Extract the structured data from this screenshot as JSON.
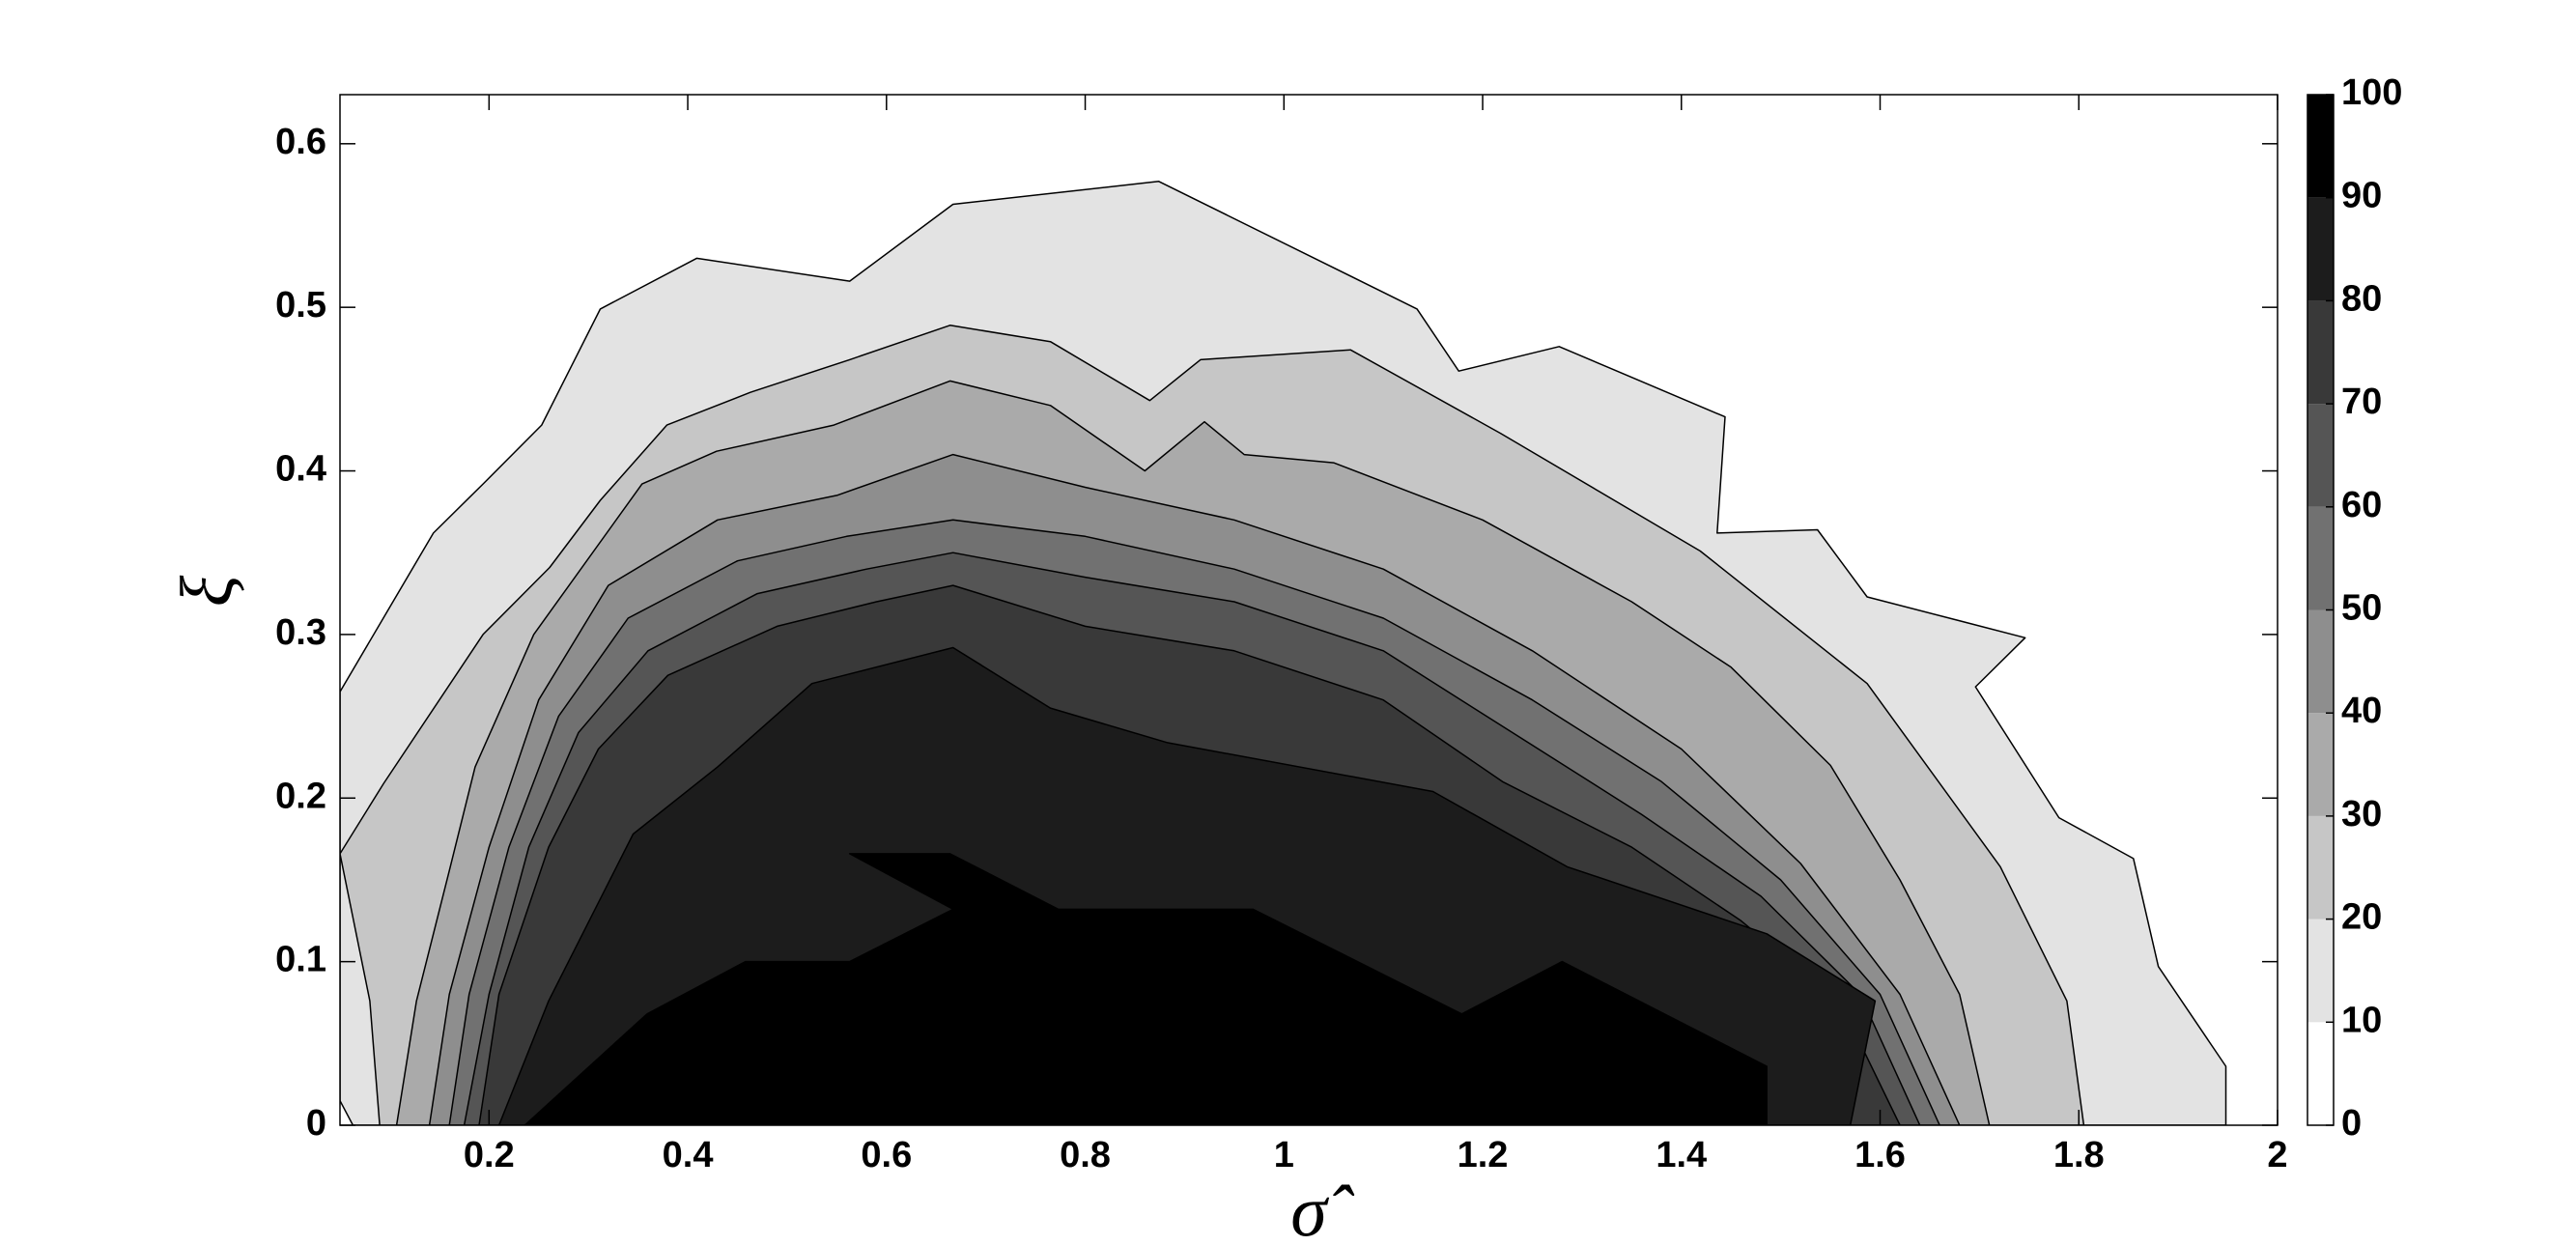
{
  "chart_data": {
    "type": "contour",
    "xlabel": "σ̂",
    "ylabel": "ξ",
    "xlim": [
      0.05,
      2
    ],
    "ylim": [
      0,
      0.63
    ],
    "xticks": [
      0.2,
      0.4,
      0.6,
      0.8,
      1,
      1.2,
      1.4,
      1.6,
      1.8,
      2
    ],
    "yticks": [
      0,
      0.1,
      0.2,
      0.3,
      0.4,
      0.5,
      0.6
    ],
    "clim": [
      0,
      100
    ],
    "cticks": [
      0,
      10,
      20,
      30,
      40,
      50,
      60,
      70,
      80,
      90,
      100
    ],
    "colors": [
      "#ffffff",
      "#e3e3e3",
      "#c6c6c6",
      "#aaaaaa",
      "#8e8e8e",
      "#717171",
      "#555555",
      "#393939",
      "#1c1c1c",
      "#000000"
    ],
    "contours": [
      {
        "x": [
          0.05,
          0.144,
          0.194,
          0.253,
          0.312,
          0.409,
          0.563,
          0.667,
          0.874,
          1.134,
          1.176,
          1.277,
          1.444,
          1.436,
          1.537,
          1.587,
          1.746,
          1.696,
          1.78,
          1.855,
          1.88,
          1.948,
          1.948,
          0.063,
          0.05
        ],
        "y": [
          0.265,
          0.362,
          0.392,
          0.428,
          0.499,
          0.53,
          0.516,
          0.563,
          0.577,
          0.499,
          0.461,
          0.476,
          0.433,
          0.362,
          0.364,
          0.323,
          0.298,
          0.268,
          0.188,
          0.163,
          0.097,
          0.036,
          0,
          0,
          0.015
        ]
      },
      {
        "x": [
          0.05,
          0.094,
          0.194,
          0.261,
          0.312,
          0.379,
          0.463,
          0.563,
          0.664,
          0.765,
          0.865,
          0.916,
          1.067,
          1.218,
          1.419,
          1.587,
          1.721,
          1.788,
          1.805,
          0.09,
          0.08
        ],
        "y": [
          0.166,
          0.209,
          0.3,
          0.341,
          0.382,
          0.428,
          0.448,
          0.468,
          0.489,
          0.479,
          0.443,
          0.468,
          0.474,
          0.423,
          0.351,
          0.27,
          0.158,
          0.076,
          0,
          0,
          0.076
        ]
      },
      {
        "x": [
          0.107,
          0.127,
          0.161,
          0.186,
          0.245,
          0.354,
          0.429,
          0.547,
          0.664,
          0.765,
          0.86,
          0.92,
          0.96,
          1.05,
          1.2,
          1.35,
          1.45,
          1.55,
          1.62,
          1.68,
          1.71
        ],
        "y": [
          0,
          0.076,
          0.158,
          0.219,
          0.3,
          0.392,
          0.412,
          0.428,
          0.455,
          0.44,
          0.4,
          0.43,
          0.41,
          0.405,
          0.37,
          0.32,
          0.28,
          0.22,
          0.15,
          0.08,
          0
        ]
      },
      {
        "x": [
          0.14,
          0.16,
          0.2,
          0.25,
          0.32,
          0.43,
          0.55,
          0.667,
          0.8,
          0.95,
          1.1,
          1.25,
          1.4,
          1.52,
          1.62,
          1.68
        ],
        "y": [
          0,
          0.08,
          0.17,
          0.26,
          0.33,
          0.37,
          0.385,
          0.41,
          0.39,
          0.37,
          0.34,
          0.29,
          0.23,
          0.16,
          0.08,
          0
        ]
      },
      {
        "x": [
          0.16,
          0.18,
          0.22,
          0.27,
          0.34,
          0.45,
          0.56,
          0.667,
          0.8,
          0.95,
          1.1,
          1.25,
          1.38,
          1.5,
          1.6,
          1.66
        ],
        "y": [
          0,
          0.08,
          0.17,
          0.25,
          0.31,
          0.345,
          0.36,
          0.37,
          0.36,
          0.34,
          0.31,
          0.26,
          0.21,
          0.15,
          0.08,
          0
        ]
      },
      {
        "x": [
          0.175,
          0.2,
          0.24,
          0.29,
          0.36,
          0.47,
          0.58,
          0.667,
          0.8,
          0.95,
          1.1,
          1.23,
          1.36,
          1.48,
          1.58,
          1.64
        ],
        "y": [
          0,
          0.08,
          0.17,
          0.24,
          0.29,
          0.325,
          0.34,
          0.35,
          0.335,
          0.32,
          0.29,
          0.24,
          0.19,
          0.14,
          0.08,
          0
        ]
      },
      {
        "x": [
          0.19,
          0.21,
          0.26,
          0.31,
          0.38,
          0.49,
          0.59,
          0.667,
          0.8,
          0.95,
          1.1,
          1.22,
          1.35,
          1.46,
          1.56,
          1.62
        ],
        "y": [
          0,
          0.08,
          0.17,
          0.23,
          0.275,
          0.305,
          0.32,
          0.33,
          0.305,
          0.29,
          0.26,
          0.21,
          0.17,
          0.125,
          0.075,
          0
        ]
      },
      {
        "x": [
          0.21,
          0.26,
          0.345,
          0.43,
          0.525,
          0.667,
          0.765,
          0.882,
          1.15,
          1.285,
          1.486,
          1.595,
          1.57
        ],
        "y": [
          0,
          0.076,
          0.178,
          0.219,
          0.27,
          0.292,
          0.255,
          0.234,
          0.204,
          0.158,
          0.117,
          0.076,
          0
        ]
      },
      {
        "x": [
          0.236,
          0.359,
          0.458,
          0.563,
          0.667,
          0.563,
          0.664,
          0.773,
          0.969,
          1.179,
          1.28,
          1.486,
          1.486
        ],
        "y": [
          0,
          0.068,
          0.1,
          0.1,
          0.132,
          0.166,
          0.166,
          0.132,
          0.132,
          0.068,
          0.1,
          0.036,
          0
        ]
      }
    ]
  }
}
